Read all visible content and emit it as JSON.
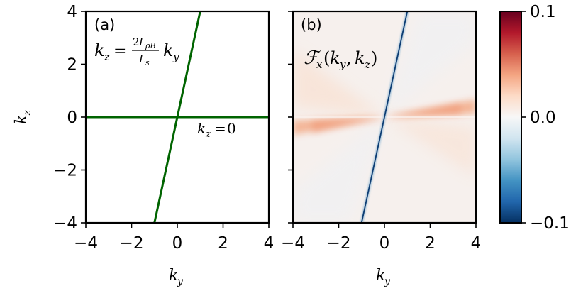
{
  "chart_data": [
    {
      "type": "line",
      "panel_label": "(a)",
      "xlabel": "k_y",
      "ylabel": "k_z",
      "xlim": [
        -4,
        4
      ],
      "ylim": [
        -4,
        4
      ],
      "xticks": [
        -4,
        -2,
        0,
        2,
        4
      ],
      "yticks": [
        -4,
        -2,
        0,
        2,
        4
      ],
      "series": [
        {
          "name": "k_z = (2L_ρB / L_s) k_y",
          "x": [
            -1.0,
            1.0
          ],
          "y": [
            -4,
            4
          ],
          "color": "#006400"
        },
        {
          "name": "k_z = 0",
          "x": [
            -4,
            4
          ],
          "y": [
            0,
            0
          ],
          "color": "#006400"
        }
      ],
      "annotations": [
        "k_z = 2L_ρB/L_s k_y",
        "k_z = 0"
      ]
    },
    {
      "type": "heatmap",
      "panel_label": "(b)",
      "title": "𝓕_x(k_y, k_z)",
      "xlabel": "k_y",
      "xlim": [
        -4,
        4
      ],
      "ylim": [
        -4,
        4
      ],
      "xticks": [
        -4,
        -2,
        0,
        2,
        4
      ],
      "colormap": "RdBu_r",
      "color_range": [
        -0.1,
        0.1
      ],
      "colorbar_ticks": [
        0.1,
        0.0,
        -0.1
      ],
      "features": [
        {
          "kind": "negative narrow ridge",
          "along": "k_z = 4 k_y",
          "peak": -0.1
        },
        {
          "kind": "positive lobe",
          "along": "k_z ≈ 0.1 k_y",
          "k_y_range": [
            -4,
            4
          ],
          "peak": 0.03
        },
        {
          "kind": "positive wedge",
          "k_y_range": [
            -4,
            0
          ],
          "k_z_range": [
            0.2,
            2.5
          ],
          "peak": 0.01
        }
      ]
    }
  ],
  "text": {
    "tick_labels": [
      "−4",
      "−2",
      "0",
      "2",
      "4"
    ],
    "colorbar_labels": [
      "0.1",
      "0.0",
      "−0.1"
    ],
    "panel_a": "(a)",
    "panel_b": "(b)"
  },
  "colors": {
    "line": "#006400",
    "cmap_neg": "#053061",
    "cmap_mid": "#f7f7f7",
    "cmap_pos": "#67001f"
  }
}
